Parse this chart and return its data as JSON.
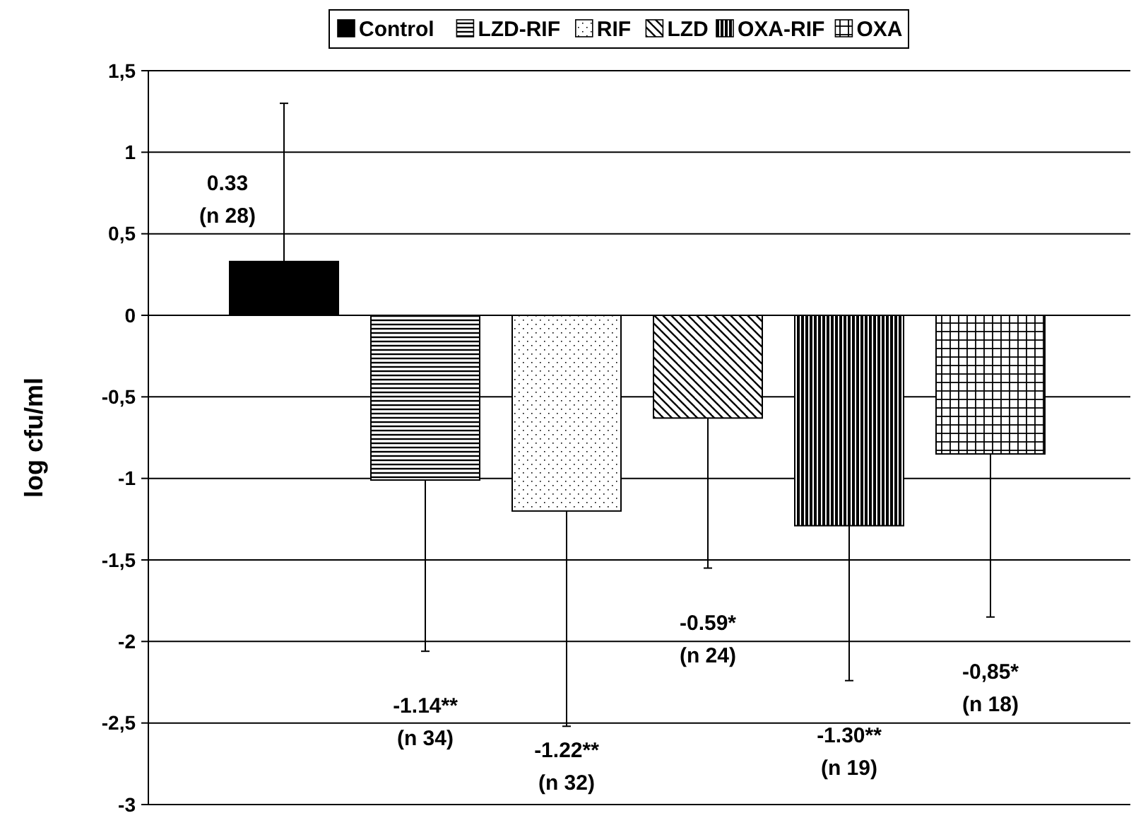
{
  "chart_data": {
    "type": "bar",
    "ylabel": "log cfu/ml",
    "categories": [
      null,
      null,
      null,
      null,
      null,
      null
    ],
    "series": [
      {
        "name": "Control",
        "color": "#000000",
        "values": [
          0.33,
          null,
          null,
          null,
          null,
          null
        ],
        "errors": [
          [
            0.33,
            1.3
          ],
          null,
          null,
          null,
          null,
          null
        ]
      },
      {
        "name": "LZD-RIF",
        "color": "#000000",
        "values": [
          null,
          -1.01,
          null,
          null,
          null,
          null
        ],
        "errors": [
          null,
          [
            -2.06,
            -1.01
          ],
          null,
          null,
          null,
          null
        ]
      },
      {
        "name": "RIF",
        "color": "#000000",
        "values": [
          null,
          null,
          -1.2,
          null,
          null,
          null
        ],
        "errors": [
          null,
          null,
          [
            -2.52,
            -1.2
          ],
          null,
          null,
          null
        ]
      },
      {
        "name": "LZD",
        "color": "#000000",
        "values": [
          null,
          null,
          null,
          -0.63,
          null,
          null
        ],
        "errors": [
          null,
          null,
          null,
          [
            -1.55,
            -0.63
          ],
          null,
          null
        ]
      },
      {
        "name": "OXA-RIF",
        "color": "#000000",
        "values": [
          null,
          null,
          null,
          null,
          -1.29,
          null
        ],
        "errors": [
          null,
          null,
          null,
          null,
          [
            -2.24,
            -1.29
          ],
          null
        ]
      },
      {
        "name": "OXA",
        "color": "#000000",
        "values": [
          null,
          null,
          null,
          null,
          null,
          -0.85
        ],
        "errors": [
          null,
          null,
          null,
          null,
          null,
          [
            -1.85,
            -0.85
          ]
        ]
      }
    ],
    "ylim": [
      -3,
      1.5
    ],
    "yticks": [
      {
        "value": -3,
        "label": "-3"
      },
      {
        "value": -2.5,
        "label": "-2,5"
      },
      {
        "value": -2,
        "label": "-2"
      },
      {
        "value": -1.5,
        "label": "-1,5"
      },
      {
        "value": -1,
        "label": "-1"
      },
      {
        "value": -0.5,
        "label": "-0,5"
      },
      {
        "value": 0,
        "label": "0"
      },
      {
        "value": 0.5,
        "label": "0,5"
      },
      {
        "value": 1,
        "label": "1"
      },
      {
        "value": 1.5,
        "label": "1,5"
      }
    ],
    "grid": "y",
    "legend": "top",
    "annotations": [
      "0.33\n(n 28)",
      "-1.14**\n(n 34)",
      "-1.22**\n(n 32)",
      "-0.59*\n(n 24)",
      "-1.30**\n(n 19)",
      "-0,85*\n(n 18)"
    ]
  }
}
